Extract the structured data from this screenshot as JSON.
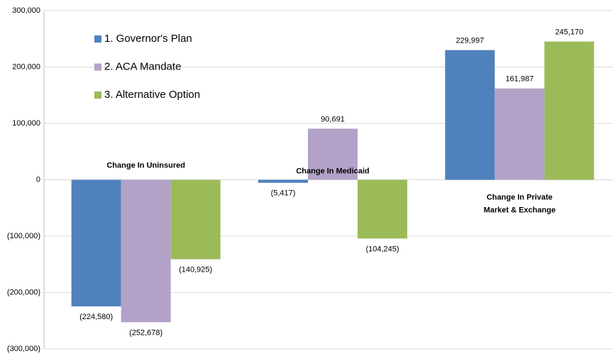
{
  "chart_data": {
    "type": "bar",
    "categories": [
      [
        "Change In Uninsured"
      ],
      [
        "Change In Medicaid"
      ],
      [
        "Change In Private",
        "Market & Exchange"
      ]
    ],
    "series": [
      {
        "name": "1. Governor's Plan",
        "color": "#4f81bd",
        "values": [
          -224580,
          -5417,
          229997
        ],
        "value_labels": [
          "(224,580)",
          "(5,417)",
          "229,997"
        ]
      },
      {
        "name": "2. ACA Mandate",
        "color": "#b3a2c7",
        "values": [
          -252678,
          90691,
          161987
        ],
        "value_labels": [
          "(252,678)",
          "90,691",
          "161,987"
        ]
      },
      {
        "name": "3. Alternative Option",
        "color": "#9bbb59",
        "values": [
          -140925,
          -104245,
          245170
        ],
        "value_labels": [
          "(140,925)",
          "(104,245)",
          "245,170"
        ]
      }
    ],
    "ylim": [
      -300000,
      300000
    ],
    "yticks": [
      {
        "value": -300000,
        "label": "(300,000)"
      },
      {
        "value": -200000,
        "label": "(200,000)"
      },
      {
        "value": -100000,
        "label": "(100,000)"
      },
      0,
      {
        "value": 100000,
        "label": "100,000"
      },
      {
        "value": 200000,
        "label": "200,000"
      },
      {
        "value": 300000,
        "label": "300,000"
      }
    ],
    "grid": true,
    "negative_label_color": "#ff0000",
    "legend": "upper left"
  }
}
